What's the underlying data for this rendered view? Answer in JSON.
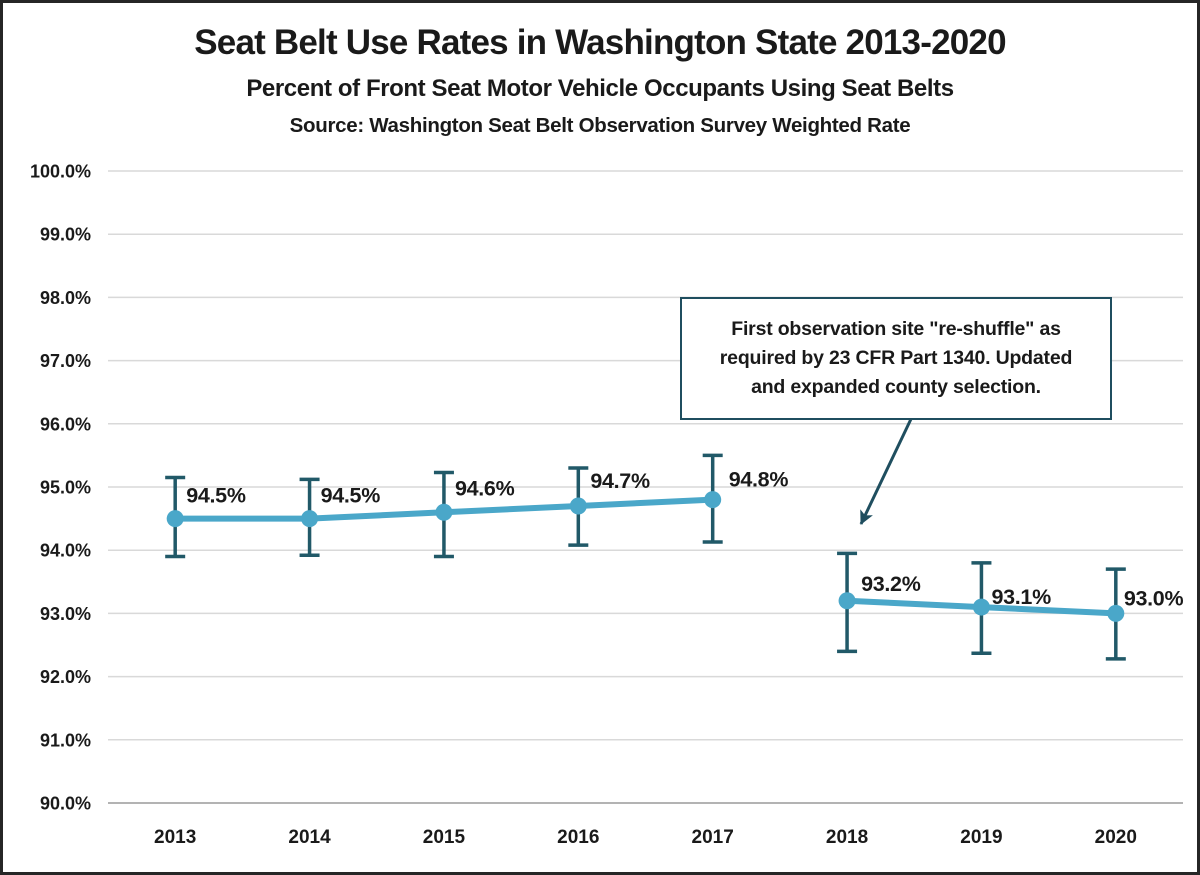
{
  "chart_data": {
    "type": "line",
    "title": "Seat Belt Use Rates in Washington State 2013-2020",
    "subtitle": "Percent of Front Seat Motor Vehicle Occupants Using Seat Belts",
    "source": "Source: Washington Seat Belt Observation Survey Weighted Rate",
    "categories": [
      "2013",
      "2014",
      "2015",
      "2016",
      "2017",
      "2018",
      "2019",
      "2020"
    ],
    "values": [
      94.5,
      94.5,
      94.6,
      94.7,
      94.8,
      93.2,
      93.1,
      93.0
    ],
    "point_labels": [
      "94.5%",
      "94.5%",
      "94.6%",
      "94.7%",
      "94.8%",
      "93.2%",
      "93.1%",
      "93.0%"
    ],
    "error_plus": [
      0.65,
      0.62,
      0.63,
      0.6,
      0.7,
      0.75,
      0.7,
      0.7
    ],
    "error_minus": [
      0.6,
      0.58,
      0.7,
      0.62,
      0.67,
      0.8,
      0.73,
      0.72
    ],
    "line_break_after": "2017",
    "ylim": [
      90,
      100
    ],
    "ytick_step": 1,
    "ytick_labels": [
      "90.0%",
      "91.0%",
      "92.0%",
      "93.0%",
      "94.0%",
      "95.0%",
      "96.0%",
      "97.0%",
      "98.0%",
      "99.0%",
      "100.0%"
    ],
    "xlabel": "",
    "ylabel": "",
    "grid": "horizontal-only",
    "legend": "none",
    "annotation": {
      "lines": [
        "First observation site \"re-shuffle\" as",
        "required by 23 CFR Part 1340. Updated",
        "and expanded county selection."
      ],
      "pointer": "arrow from box bottom to gap between 2017 and 2018"
    },
    "colors": {
      "line": "#4aa7c9",
      "marker": "#4aa7c9",
      "error_bar": "#215968",
      "annotation_border": "#1f4e5f",
      "gridline": "#d9d9d9",
      "axis_line": "#b3b3b3",
      "text": "#1a1a1a"
    }
  }
}
